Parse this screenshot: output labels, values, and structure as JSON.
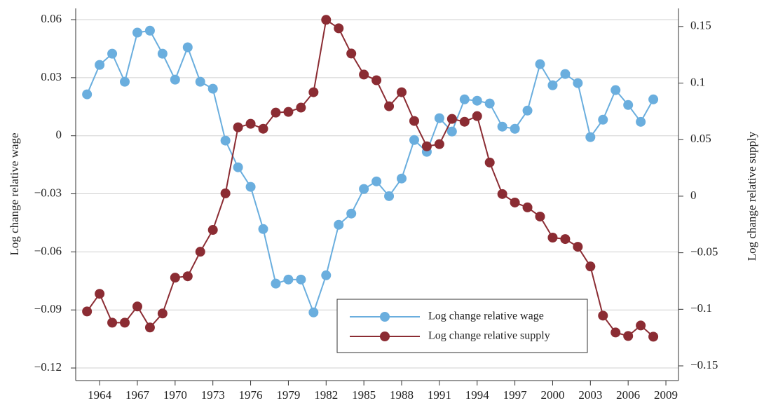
{
  "chart_data": {
    "type": "line",
    "y_label": "Log change relative wage",
    "y2_label": "Log change relative supply",
    "x": [
      1963,
      1964,
      1965,
      1966,
      1967,
      1968,
      1969,
      1970,
      1971,
      1972,
      1973,
      1974,
      1975,
      1976,
      1977,
      1978,
      1979,
      1980,
      1981,
      1982,
      1983,
      1984,
      1985,
      1986,
      1987,
      1988,
      1989,
      1990,
      1991,
      1992,
      1993,
      1994,
      1995,
      1996,
      1997,
      1998,
      1999,
      2000,
      2001,
      2002,
      2003,
      2004,
      2005,
      2006,
      2007,
      2008
    ],
    "xlim": [
      1962.1,
      2010
    ],
    "xticks": [
      1964,
      1967,
      1970,
      1973,
      1976,
      1979,
      1982,
      1985,
      1988,
      1991,
      1994,
      1997,
      2000,
      2003,
      2006,
      2009
    ],
    "ylim": [
      -0.1265,
      0.0658
    ],
    "yticks": [
      {
        "value": -0.12,
        "label": "−0.12"
      },
      {
        "value": -0.09,
        "label": "−0.09"
      },
      {
        "value": -0.06,
        "label": "−0.06"
      },
      {
        "value": -0.03,
        "label": "−0.03"
      },
      0,
      0.03,
      0.06
    ],
    "y2lim": [
      -0.163,
      0.166
    ],
    "y2ticks": [
      {
        "value": -0.15,
        "label": "−0.15"
      },
      {
        "value": -0.1,
        "label": "−0.1"
      },
      {
        "value": -0.05,
        "label": "−0.05"
      },
      0,
      0.05,
      0.1,
      0.15
    ],
    "grid": true,
    "legend": "lower center",
    "series": [
      {
        "name": "Log change relative wage",
        "color": "#6aaede",
        "axis": "y",
        "values": [
          0.0214,
          0.0366,
          0.0424,
          0.0279,
          0.0533,
          0.0543,
          0.0424,
          0.029,
          0.0457,
          0.0279,
          0.0243,
          -0.0025,
          -0.0163,
          -0.0264,
          -0.0482,
          -0.0764,
          -0.0743,
          -0.0743,
          -0.0913,
          -0.0721,
          -0.046,
          -0.0402,
          -0.0275,
          -0.0236,
          -0.0312,
          -0.0221,
          -0.0022,
          -0.0083,
          0.0091,
          0.0022,
          0.0188,
          0.0181,
          0.0167,
          0.0047,
          0.0036,
          0.013,
          0.037,
          0.0261,
          0.0319,
          0.0272,
          -0.0007,
          0.0083,
          0.0236,
          0.0159,
          0.0072,
          0.0188
        ]
      },
      {
        "name": "Log change relative supply",
        "color": "#8b2c33",
        "axis": "y2",
        "values": [
          -0.1019,
          -0.0863,
          -0.1118,
          -0.1118,
          -0.0975,
          -0.1161,
          -0.1037,
          -0.072,
          -0.0708,
          -0.0491,
          -0.0298,
          0.0025,
          0.0609,
          0.064,
          0.0596,
          0.0739,
          0.0745,
          0.0783,
          0.0919,
          0.1559,
          0.1484,
          0.1261,
          0.1075,
          0.1025,
          0.0795,
          0.0919,
          0.0665,
          0.0441,
          0.046,
          0.0683,
          0.0658,
          0.0708,
          0.0298,
          0.0019,
          -0.0056,
          -0.0099,
          -0.018,
          -0.0366,
          -0.0379,
          -0.0447,
          -0.0621,
          -0.1056,
          -0.1205,
          -0.1236,
          -0.1143,
          -0.1242
        ]
      }
    ]
  }
}
